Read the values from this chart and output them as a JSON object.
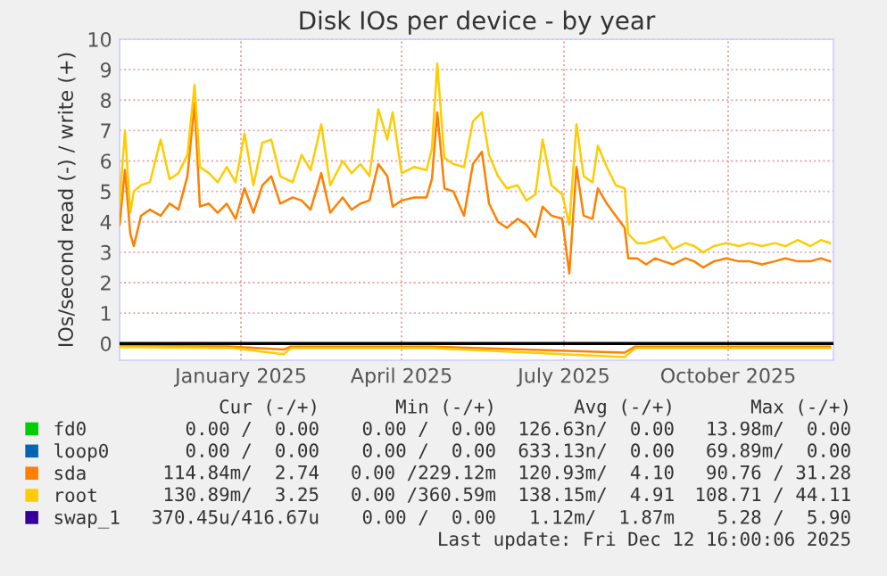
{
  "chart_data": {
    "type": "line",
    "title": "Disk IOs per device - by year",
    "ylabel": "IOs/second read (-) / write (+)",
    "x": [
      "2024-11-08",
      "2024-11-11",
      "2024-11-14",
      "2024-11-16",
      "2024-11-20",
      "2024-11-25",
      "2024-12-01",
      "2024-12-06",
      "2024-12-11",
      "2024-12-16",
      "2024-12-20",
      "2024-12-23",
      "2024-12-28",
      "2025-01-02",
      "2025-01-07",
      "2025-01-12",
      "2025-01-17",
      "2025-01-22",
      "2025-01-27",
      "2025-02-01",
      "2025-02-06",
      "2025-02-13",
      "2025-02-18",
      "2025-02-23",
      "2025-03-01",
      "2025-03-06",
      "2025-03-13",
      "2025-03-18",
      "2025-03-23",
      "2025-03-28",
      "2025-04-02",
      "2025-04-07",
      "2025-04-10",
      "2025-04-15",
      "2025-04-22",
      "2025-04-29",
      "2025-05-02",
      "2025-05-05",
      "2025-05-09",
      "2025-05-14",
      "2025-05-20",
      "2025-05-25",
      "2025-05-30",
      "2025-06-03",
      "2025-06-08",
      "2025-06-13",
      "2025-06-19",
      "2025-06-24",
      "2025-06-29",
      "2025-07-03",
      "2025-07-08",
      "2025-07-14",
      "2025-07-18",
      "2025-07-22",
      "2025-07-26",
      "2025-07-31",
      "2025-08-03",
      "2025-08-08",
      "2025-08-13",
      "2025-08-18",
      "2025-08-20",
      "2025-08-25",
      "2025-08-30",
      "2025-09-04",
      "2025-09-09",
      "2025-09-14",
      "2025-09-21",
      "2025-09-26",
      "2025-10-01",
      "2025-10-07",
      "2025-10-14",
      "2025-10-21",
      "2025-10-27",
      "2025-11-03",
      "2025-11-10",
      "2025-11-16",
      "2025-11-23",
      "2025-11-30",
      "2025-12-06",
      "2025-12-11"
    ],
    "series": [
      {
        "name": "fd0",
        "color": "#00cc00",
        "values": [
          null,
          null,
          null,
          null,
          null,
          null,
          null,
          null,
          null,
          null,
          null,
          null,
          null,
          null,
          null,
          null,
          null,
          null,
          null,
          null,
          null,
          null,
          null,
          null,
          null,
          null,
          null,
          null,
          null,
          null,
          null,
          null,
          null,
          null,
          null,
          null,
          null,
          null,
          null,
          null,
          null,
          null,
          null,
          null,
          null,
          null,
          null,
          null,
          null,
          null,
          null,
          null,
          null,
          null,
          null,
          null,
          null,
          null,
          null,
          null,
          null,
          null,
          null,
          null,
          null,
          null,
          null,
          null,
          null,
          null,
          null,
          null,
          null,
          null,
          null,
          null,
          null,
          null,
          null,
          null
        ]
      },
      {
        "name": "loop0",
        "color": "#0066b3",
        "values": [
          null,
          null,
          null,
          null,
          null,
          null,
          null,
          null,
          null,
          null,
          null,
          null,
          null,
          null,
          null,
          null,
          null,
          null,
          null,
          null,
          null,
          null,
          null,
          null,
          null,
          null,
          null,
          null,
          null,
          null,
          null,
          null,
          null,
          null,
          null,
          null,
          null,
          null,
          null,
          null,
          null,
          null,
          null,
          null,
          null,
          null,
          null,
          null,
          null,
          null,
          null,
          null,
          null,
          null,
          null,
          null,
          null,
          null,
          null,
          null,
          null,
          null,
          null,
          null,
          null,
          null,
          null,
          null,
          null,
          null,
          null,
          null,
          null,
          null,
          null,
          null,
          null,
          null,
          null,
          null
        ]
      },
      {
        "name": "sda",
        "color": "#ff8000",
        "values": [
          3.9,
          5.7,
          3.6,
          3.2,
          4.2,
          4.4,
          4.2,
          4.6,
          4.4,
          5.5,
          7.9,
          4.5,
          4.6,
          4.3,
          4.6,
          4.1,
          5.1,
          4.3,
          5.2,
          5.5,
          4.6,
          4.8,
          4.7,
          4.4,
          5.6,
          4.3,
          4.8,
          4.4,
          4.6,
          4.7,
          5.9,
          5.5,
          4.5,
          4.7,
          4.8,
          4.8,
          5.4,
          7.6,
          5.1,
          5.0,
          4.2,
          5.9,
          6.3,
          4.6,
          4.0,
          3.8,
          4.1,
          3.9,
          3.5,
          4.5,
          4.2,
          4.1,
          2.3,
          5.8,
          4.2,
          4.1,
          5.1,
          4.6,
          4.2,
          3.8,
          2.8,
          2.8,
          2.6,
          2.8,
          2.7,
          2.6,
          2.8,
          2.7,
          2.5,
          2.7,
          2.8,
          2.7,
          2.7,
          2.6,
          2.7,
          2.8,
          2.7,
          2.7,
          2.8,
          2.7
        ]
      },
      {
        "name": "root",
        "color": "#ffcc00",
        "values": [
          4.6,
          7.0,
          4.3,
          5.0,
          5.2,
          5.3,
          6.7,
          5.4,
          5.6,
          6.2,
          8.5,
          5.8,
          5.6,
          5.3,
          5.8,
          5.3,
          6.9,
          5.2,
          6.6,
          6.7,
          5.5,
          5.3,
          6.2,
          5.7,
          7.2,
          5.2,
          6.0,
          5.6,
          5.9,
          5.5,
          7.7,
          6.7,
          7.6,
          5.6,
          5.8,
          5.7,
          6.4,
          9.2,
          6.1,
          5.9,
          5.8,
          7.3,
          7.6,
          6.2,
          5.5,
          5.1,
          5.2,
          4.7,
          4.9,
          6.7,
          5.2,
          4.9,
          3.9,
          7.2,
          5.5,
          5.3,
          6.5,
          5.8,
          5.2,
          5.1,
          3.6,
          3.3,
          3.3,
          3.4,
          3.5,
          3.1,
          3.3,
          3.2,
          3.0,
          3.2,
          3.3,
          3.2,
          3.3,
          3.2,
          3.3,
          3.2,
          3.4,
          3.2,
          3.4,
          3.3
        ]
      },
      {
        "name": "swap_1",
        "color": "#330099",
        "values": [
          null,
          null,
          null,
          null,
          null,
          null,
          null,
          null,
          null,
          null,
          null,
          null,
          null,
          null,
          null,
          null,
          null,
          null,
          null,
          null,
          null,
          null,
          null,
          null,
          null,
          null,
          null,
          null,
          null,
          null,
          null,
          null,
          null,
          null,
          null,
          null,
          null,
          null,
          null,
          null,
          null,
          null,
          null,
          null,
          null,
          null,
          null,
          null,
          null,
          null,
          null,
          null,
          null,
          null,
          null,
          null,
          null,
          null,
          null,
          null,
          null,
          null,
          null,
          null,
          null,
          null,
          null,
          null,
          null,
          null,
          null,
          null,
          null,
          null,
          null,
          null,
          null,
          null,
          null,
          null
        ]
      },
      {
        "color": "#ff8000",
        "x": [
          "2024-11-08",
          "2025-01-10",
          "2025-02-08",
          "2025-02-12",
          "2025-05-01",
          "2025-08-18",
          "2025-08-24",
          "2025-12-11"
        ],
        "values": [
          -0.08,
          -0.1,
          -0.2,
          -0.1,
          -0.1,
          -0.3,
          -0.1,
          -0.1
        ]
      },
      {
        "color": "#ffcc00",
        "x": [
          "2024-11-08",
          "2025-01-10",
          "2025-02-08",
          "2025-02-12",
          "2025-05-01",
          "2025-08-18",
          "2025-08-24",
          "2025-12-11"
        ],
        "values": [
          -0.12,
          -0.15,
          -0.35,
          -0.15,
          -0.15,
          -0.45,
          -0.15,
          -0.15
        ]
      }
    ],
    "xlim": [
      "2024-11-08",
      "2025-12-13"
    ],
    "xticks": [
      {
        "value": "2025-01-15",
        "label": "January 2025"
      },
      {
        "value": "2025-04-15",
        "label": "April 2025"
      },
      {
        "value": "2025-07-15",
        "label": "July 2025"
      },
      {
        "value": "2025-10-15",
        "label": "October 2025"
      }
    ],
    "ylim": [
      -0.55,
      10
    ],
    "yticks": [
      0,
      1,
      2,
      3,
      4,
      5,
      6,
      7,
      8,
      9,
      10
    ],
    "ref_lines": [
      {
        "axis": "y",
        "value": 0,
        "color": "#000000"
      }
    ],
    "grid": true,
    "legend": "bottom left",
    "marker": "none",
    "line_style": "solid",
    "annotations": [
      "Cur (-/+)",
      "Min (-/+)",
      "Avg (-/+)",
      "Max (-/+)",
      "0.00 /  0.00",
      "0.00 /  0.00",
      "126.63n/  0.00",
      "13.98m/  0.00",
      "0.00 /  0.00",
      "0.00 /  0.00",
      "633.13n/  0.00",
      "69.89m/  0.00",
      "114.84m/  2.74",
      "0.00 /229.12m",
      "120.93m/  4.10",
      "90.76 / 31.28",
      "130.89m/  3.25",
      "0.00 /360.59m",
      "138.15m/  4.91",
      "108.71 / 44.11",
      "370.45u/416.67u",
      "0.00 /  0.00",
      "1.12m/  1.87m",
      "5.28 /  5.90",
      "Last update: Fri Dec 12 16:00:06 2025"
    ]
  }
}
